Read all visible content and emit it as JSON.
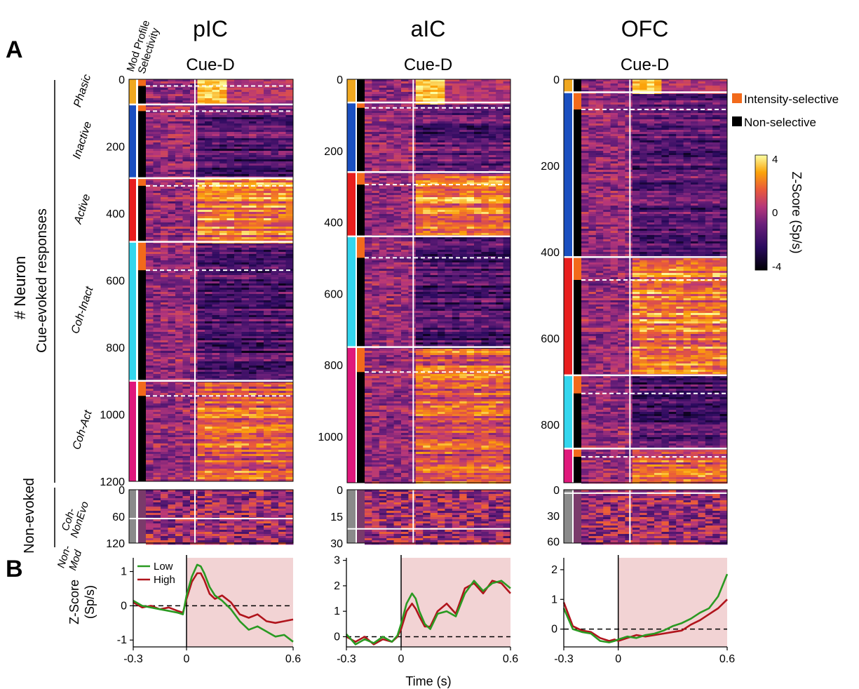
{
  "panel_labels": {
    "a": "A",
    "b": "B"
  },
  "column_header_labels": [
    "Mod Profile",
    "Selectivity"
  ],
  "y_axis_title": "# Neuron",
  "group_labels": {
    "cue_evoked": "Cue-evoked responses",
    "non_evoked": "Non-evoked"
  },
  "legend": {
    "intensity_selective": "Intensity-selective",
    "non_selective": "Non-selective"
  },
  "colorbar": {
    "label": "Z-Score (Sp/s)",
    "max_label": "4",
    "mid_label": "0",
    "min_label": "-4"
  },
  "colors": {
    "phasic": "#f0a820",
    "inactive": "#1a4fc0",
    "active": "#e81e1e",
    "coh_inact": "#33d6ee",
    "coh_act": "#e0187c",
    "non_evoked": "#8a8a8a",
    "intensity": "#f26a1b",
    "nonsel": "#000000",
    "low": "#2a9a22",
    "high": "#b0141c",
    "shade": "#f2d3d4"
  },
  "chart_data": [
    {
      "type": "heatmap",
      "title": "pIC",
      "subtitle": "Cue-D",
      "y_ticks": [
        "0",
        "200",
        "400",
        "600",
        "800",
        "1000",
        "1200"
      ],
      "y_max": 1200,
      "categories": [
        {
          "name": "Phasic",
          "start": 0,
          "end": 75,
          "selective_end": 20
        },
        {
          "name": "Inactive",
          "start": 75,
          "end": 295,
          "selective_end": 95
        },
        {
          "name": "Active",
          "start": 295,
          "end": 485,
          "selective_end": 318
        },
        {
          "name": "Coh-Inact",
          "start": 485,
          "end": 900,
          "selective_end": 570
        },
        {
          "name": "Coh-Act",
          "start": 900,
          "end": 1200,
          "selective_end": 945
        }
      ],
      "non_evoked": {
        "y_ticks": [
          "0",
          "60",
          "120"
        ],
        "y_max": 120,
        "categories": [
          {
            "name": "Coh-NonEvo",
            "start": 0,
            "end": 65
          },
          {
            "name": "Non-Mod",
            "start": 65,
            "end": 120
          }
        ]
      }
    },
    {
      "type": "heatmap",
      "title": "aIC",
      "subtitle": "Cue-D",
      "y_ticks": [
        "0",
        "200",
        "400",
        "600",
        "800",
        "1000"
      ],
      "y_max": 1130,
      "categories": [
        {
          "name": "Phasic",
          "start": 0,
          "end": 65,
          "selective_end": 0
        },
        {
          "name": "Inactive",
          "start": 65,
          "end": 260,
          "selective_end": 80
        },
        {
          "name": "Active",
          "start": 260,
          "end": 440,
          "selective_end": 295
        },
        {
          "name": "Coh-Inact",
          "start": 440,
          "end": 750,
          "selective_end": 500
        },
        {
          "name": "Coh-Act",
          "start": 750,
          "end": 1130,
          "selective_end": 820
        }
      ],
      "non_evoked": {
        "y_ticks": [
          "0",
          "15",
          "30"
        ],
        "y_max": 30,
        "categories": [
          {
            "name": "Coh-NonEvo",
            "start": 0,
            "end": 22
          },
          {
            "name": "Non-Mod",
            "start": 22,
            "end": 30
          }
        ]
      }
    },
    {
      "type": "heatmap",
      "title": "OFC",
      "subtitle": "Cue-D",
      "y_ticks": [
        "0",
        "200",
        "400",
        "600",
        "800"
      ],
      "y_max": 935,
      "categories": [
        {
          "name": "Phasic",
          "start": 0,
          "end": 30,
          "selective_end": 0
        },
        {
          "name": "Inactive",
          "start": 30,
          "end": 412,
          "selective_end": 70
        },
        {
          "name": "Active",
          "start": 412,
          "end": 686,
          "selective_end": 465
        },
        {
          "name": "Coh-Inact",
          "start": 686,
          "end": 856,
          "selective_end": 728
        },
        {
          "name": "Coh-Act",
          "start": 856,
          "end": 935,
          "selective_end": 875
        }
      ],
      "non_evoked": {
        "y_ticks": [
          "0",
          "30",
          "60"
        ],
        "y_max": 62,
        "categories": [
          {
            "name": "Coh-NonEvo",
            "start": 0,
            "end": 4
          },
          {
            "name": "Non-Mod",
            "start": 4,
            "end": 62
          }
        ]
      }
    },
    {
      "type": "line",
      "title": "pIC",
      "xlabel": "",
      "ylabel": "Z-Score (Sp/s)",
      "x_ticks": [
        "-0.3",
        "0",
        "0.6"
      ],
      "y_ticks": [
        "-1",
        "0",
        "1"
      ],
      "xlim": [
        -0.3,
        0.6
      ],
      "ylim": [
        -1.2,
        1.4
      ],
      "shaded_region": [
        0,
        0.6
      ],
      "x": [
        -0.3,
        -0.25,
        -0.2,
        -0.15,
        -0.1,
        -0.05,
        -0.02,
        0,
        0.03,
        0.06,
        0.08,
        0.1,
        0.13,
        0.16,
        0.2,
        0.25,
        0.3,
        0.35,
        0.4,
        0.45,
        0.5,
        0.55,
        0.6
      ],
      "series": [
        {
          "name": "Low",
          "values": [
            0.15,
            0.0,
            -0.05,
            -0.1,
            -0.15,
            -0.2,
            -0.25,
            0.3,
            0.85,
            1.2,
            1.15,
            0.95,
            0.55,
            0.3,
            0.15,
            -0.1,
            -0.45,
            -0.7,
            -0.6,
            -0.75,
            -0.9,
            -0.85,
            -1.05
          ]
        },
        {
          "name": "High",
          "values": [
            0.1,
            -0.05,
            0.0,
            -0.1,
            -0.05,
            -0.15,
            -0.2,
            0.2,
            0.7,
            0.95,
            0.95,
            0.75,
            0.35,
            0.2,
            0.3,
            0.1,
            -0.25,
            -0.35,
            -0.25,
            -0.45,
            -0.5,
            -0.45,
            -0.4
          ]
        }
      ],
      "baseline": 0,
      "legend_position": "top-left"
    },
    {
      "type": "line",
      "title": "aIC",
      "xlabel": "Time (s)",
      "ylabel": "",
      "x_ticks": [
        "-0.3",
        "0",
        "0.6"
      ],
      "y_ticks": [
        "0",
        "1",
        "2",
        "3"
      ],
      "xlim": [
        -0.3,
        0.6
      ],
      "ylim": [
        -0.4,
        3.1
      ],
      "shaded_region": [
        0,
        0.6
      ],
      "x": [
        -0.3,
        -0.25,
        -0.2,
        -0.15,
        -0.1,
        -0.05,
        -0.02,
        0,
        0.03,
        0.06,
        0.08,
        0.1,
        0.13,
        0.16,
        0.2,
        0.25,
        0.3,
        0.35,
        0.4,
        0.45,
        0.5,
        0.55,
        0.6
      ],
      "series": [
        {
          "name": "Low",
          "values": [
            0.1,
            -0.3,
            -0.1,
            -0.25,
            0.0,
            -0.2,
            0.05,
            0.5,
            1.3,
            1.7,
            1.5,
            1.0,
            0.5,
            0.3,
            0.9,
            1.0,
            0.8,
            1.7,
            2.2,
            1.8,
            2.1,
            2.2,
            1.9
          ]
        },
        {
          "name": "High",
          "values": [
            0.0,
            -0.2,
            0.0,
            -0.3,
            -0.1,
            -0.2,
            0.0,
            0.3,
            1.0,
            1.3,
            1.1,
            0.8,
            0.4,
            0.4,
            1.0,
            1.3,
            0.9,
            1.9,
            2.1,
            1.7,
            2.2,
            2.1,
            1.7
          ]
        }
      ],
      "baseline": 0
    },
    {
      "type": "line",
      "title": "OFC",
      "xlabel": "",
      "ylabel": "",
      "x_ticks": [
        "-0.3",
        "0",
        "0.6"
      ],
      "y_ticks": [
        "0",
        "1",
        "2"
      ],
      "xlim": [
        -0.3,
        0.6
      ],
      "ylim": [
        -0.6,
        2.4
      ],
      "shaded_region": [
        0,
        0.6
      ],
      "x": [
        -0.3,
        -0.25,
        -0.2,
        -0.15,
        -0.1,
        -0.05,
        -0.02,
        0,
        0.05,
        0.1,
        0.15,
        0.2,
        0.25,
        0.3,
        0.35,
        0.4,
        0.45,
        0.5,
        0.55,
        0.6
      ],
      "series": [
        {
          "name": "Low",
          "values": [
            0.7,
            0.0,
            -0.1,
            -0.15,
            -0.4,
            -0.45,
            -0.4,
            -0.35,
            -0.25,
            -0.3,
            -0.2,
            -0.15,
            -0.05,
            0.1,
            0.2,
            0.35,
            0.55,
            0.7,
            1.1,
            1.85
          ]
        },
        {
          "name": "High",
          "values": [
            0.9,
            0.1,
            -0.05,
            -0.1,
            -0.3,
            -0.4,
            -0.35,
            -0.4,
            -0.3,
            -0.2,
            -0.25,
            -0.2,
            -0.15,
            -0.1,
            -0.05,
            0.15,
            0.3,
            0.5,
            0.7,
            1.0
          ]
        }
      ],
      "baseline": 0
    }
  ]
}
